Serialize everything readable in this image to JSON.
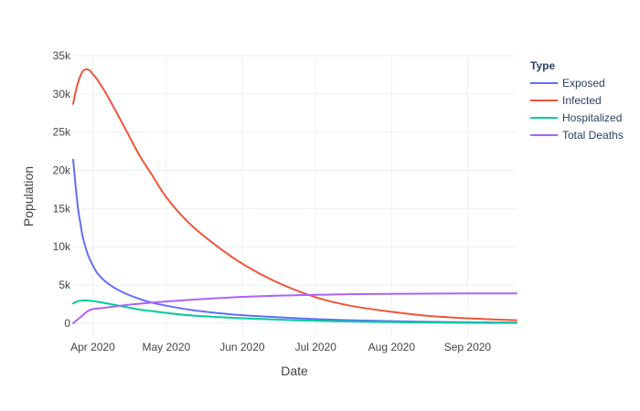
{
  "chart_data": {
    "type": "line",
    "title": "",
    "xlabel": "Date",
    "ylabel": "Population",
    "x_type": "date",
    "xlim": [
      "2020-03-24",
      "2020-09-21"
    ],
    "ylim": [
      -1800,
      35000
    ],
    "x_ticks": [
      {
        "value": "2020-04-01",
        "label": "Apr 2020"
      },
      {
        "value": "2020-05-01",
        "label": "May 2020"
      },
      {
        "value": "2020-06-01",
        "label": "Jun 2020"
      },
      {
        "value": "2020-07-01",
        "label": "Jul 2020"
      },
      {
        "value": "2020-08-01",
        "label": "Aug 2020"
      },
      {
        "value": "2020-09-01",
        "label": "Sep 2020"
      }
    ],
    "y_ticks": [
      {
        "value": 0,
        "label": "0"
      },
      {
        "value": 5000,
        "label": "5k"
      },
      {
        "value": 10000,
        "label": "10k"
      },
      {
        "value": 15000,
        "label": "15k"
      },
      {
        "value": 20000,
        "label": "20k"
      },
      {
        "value": 25000,
        "label": "25k"
      },
      {
        "value": 30000,
        "label": "30k"
      },
      {
        "value": 35000,
        "label": "35k"
      }
    ],
    "grid": true,
    "legend": {
      "title": "Type",
      "position": "right"
    },
    "series": [
      {
        "name": "Exposed",
        "color": "#636efa",
        "points": [
          [
            "2020-03-24",
            21400
          ],
          [
            "2020-03-25",
            18000
          ],
          [
            "2020-03-26",
            15000
          ],
          [
            "2020-03-27",
            13000
          ],
          [
            "2020-03-28",
            11200
          ],
          [
            "2020-03-30",
            9000
          ],
          [
            "2020-04-01",
            7600
          ],
          [
            "2020-04-03",
            6500
          ],
          [
            "2020-04-06",
            5500
          ],
          [
            "2020-04-10",
            4600
          ],
          [
            "2020-04-15",
            3800
          ],
          [
            "2020-04-20",
            3200
          ],
          [
            "2020-04-25",
            2700
          ],
          [
            "2020-05-01",
            2300
          ],
          [
            "2020-05-10",
            1800
          ],
          [
            "2020-05-20",
            1400
          ],
          [
            "2020-06-01",
            1050
          ],
          [
            "2020-06-15",
            800
          ],
          [
            "2020-07-01",
            550
          ],
          [
            "2020-07-15",
            400
          ],
          [
            "2020-08-01",
            280
          ],
          [
            "2020-08-15",
            200
          ],
          [
            "2020-09-01",
            130
          ],
          [
            "2020-09-21",
            80
          ]
        ]
      },
      {
        "name": "Infected",
        "color": "#ef553b",
        "points": [
          [
            "2020-03-24",
            28700
          ],
          [
            "2020-03-25",
            30300
          ],
          [
            "2020-03-26",
            31500
          ],
          [
            "2020-03-27",
            32400
          ],
          [
            "2020-03-28",
            33000
          ],
          [
            "2020-03-29",
            33200
          ],
          [
            "2020-03-30",
            33200
          ],
          [
            "2020-03-31",
            33000
          ],
          [
            "2020-04-01",
            32600
          ],
          [
            "2020-04-03",
            31800
          ],
          [
            "2020-04-06",
            30300
          ],
          [
            "2020-04-10",
            28000
          ],
          [
            "2020-04-15",
            25000
          ],
          [
            "2020-04-20",
            22000
          ],
          [
            "2020-04-25",
            19500
          ],
          [
            "2020-05-01",
            16500
          ],
          [
            "2020-05-10",
            13200
          ],
          [
            "2020-05-20",
            10500
          ],
          [
            "2020-06-01",
            7800
          ],
          [
            "2020-06-15",
            5400
          ],
          [
            "2020-07-01",
            3400
          ],
          [
            "2020-07-15",
            2300
          ],
          [
            "2020-08-01",
            1500
          ],
          [
            "2020-08-15",
            1000
          ],
          [
            "2020-09-01",
            650
          ],
          [
            "2020-09-21",
            400
          ]
        ]
      },
      {
        "name": "Hospitalized",
        "color": "#00cc96",
        "points": [
          [
            "2020-03-24",
            2600
          ],
          [
            "2020-03-26",
            2900
          ],
          [
            "2020-03-29",
            3000
          ],
          [
            "2020-04-01",
            2900
          ],
          [
            "2020-04-05",
            2700
          ],
          [
            "2020-04-10",
            2400
          ],
          [
            "2020-04-15",
            2100
          ],
          [
            "2020-04-20",
            1800
          ],
          [
            "2020-04-25",
            1600
          ],
          [
            "2020-05-01",
            1350
          ],
          [
            "2020-05-10",
            1050
          ],
          [
            "2020-05-20",
            850
          ],
          [
            "2020-06-01",
            650
          ],
          [
            "2020-06-15",
            480
          ],
          [
            "2020-07-01",
            330
          ],
          [
            "2020-07-15",
            230
          ],
          [
            "2020-08-01",
            150
          ],
          [
            "2020-08-15",
            100
          ],
          [
            "2020-09-01",
            60
          ],
          [
            "2020-09-21",
            30
          ]
        ]
      },
      {
        "name": "Total Deaths",
        "color": "#ab63fa",
        "points": [
          [
            "2020-03-24",
            0
          ],
          [
            "2020-03-27",
            800
          ],
          [
            "2020-03-30",
            1600
          ],
          [
            "2020-04-01",
            1850
          ],
          [
            "2020-04-05",
            2000
          ],
          [
            "2020-04-10",
            2200
          ],
          [
            "2020-04-15",
            2400
          ],
          [
            "2020-04-20",
            2550
          ],
          [
            "2020-04-25",
            2700
          ],
          [
            "2020-05-01",
            2850
          ],
          [
            "2020-05-10",
            3050
          ],
          [
            "2020-05-20",
            3250
          ],
          [
            "2020-06-01",
            3450
          ],
          [
            "2020-06-15",
            3600
          ],
          [
            "2020-07-01",
            3720
          ],
          [
            "2020-07-15",
            3800
          ],
          [
            "2020-08-01",
            3850
          ],
          [
            "2020-08-15",
            3880
          ],
          [
            "2020-09-01",
            3900
          ],
          [
            "2020-09-21",
            3910
          ]
        ]
      }
    ]
  }
}
